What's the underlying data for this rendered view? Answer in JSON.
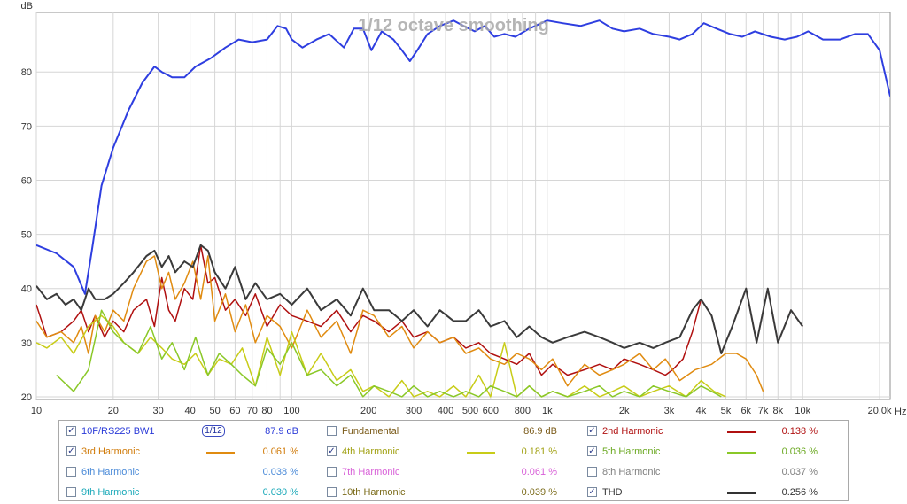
{
  "overlay_title": "1/12 octave smoothing",
  "chart_data": {
    "type": "line",
    "x_scale": "log",
    "xlim": [
      10,
      22000
    ],
    "ylim": [
      19.5,
      91
    ],
    "ylabel": "dB",
    "xlabel": "Hz",
    "grid": true,
    "y_ticks": [
      20,
      30,
      40,
      50,
      60,
      70,
      80
    ],
    "x_ticks": [
      {
        "v": 10,
        "label": "10"
      },
      {
        "v": 20,
        "label": "20"
      },
      {
        "v": 30,
        "label": "30"
      },
      {
        "v": 40,
        "label": "40"
      },
      {
        "v": 50,
        "label": "50"
      },
      {
        "v": 60,
        "label": "60"
      },
      {
        "v": 70,
        "label": "70"
      },
      {
        "v": 80,
        "label": "80"
      },
      {
        "v": 100,
        "label": "100"
      },
      {
        "v": 200,
        "label": "200"
      },
      {
        "v": 300,
        "label": "300"
      },
      {
        "v": 400,
        "label": "400"
      },
      {
        "v": 500,
        "label": "500"
      },
      {
        "v": 600,
        "label": "600"
      },
      {
        "v": 800,
        "label": "800"
      },
      {
        "v": 1000,
        "label": "1k"
      },
      {
        "v": 2000,
        "label": "2k"
      },
      {
        "v": 3000,
        "label": "3k"
      },
      {
        "v": 4000,
        "label": "4k"
      },
      {
        "v": 5000,
        "label": "5k"
      },
      {
        "v": 6000,
        "label": "6k"
      },
      {
        "v": 7000,
        "label": "7k"
      },
      {
        "v": 8000,
        "label": "8k"
      },
      {
        "v": 10000,
        "label": "10k"
      },
      {
        "v": 20000,
        "label": "20.0k"
      }
    ],
    "series": [
      {
        "name": "10F/RS225 BW1",
        "color": "#2e3ee0",
        "width": 2,
        "x": [
          10,
          12,
          14,
          15.5,
          16.5,
          18,
          20,
          23,
          26,
          29,
          31,
          34,
          38,
          42,
          48,
          55,
          62,
          70,
          80,
          88,
          95,
          100,
          110,
          125,
          140,
          160,
          175,
          190,
          205,
          225,
          250,
          270,
          290,
          310,
          340,
          380,
          430,
          470,
          520,
          570,
          620,
          680,
          750,
          850,
          1000,
          1150,
          1350,
          1600,
          1800,
          2000,
          2300,
          2600,
          3000,
          3300,
          3700,
          4100,
          4600,
          5200,
          5800,
          6500,
          7500,
          8500,
          9500,
          10500,
          12000,
          14000,
          16000,
          18000,
          20000,
          22000
        ],
        "y": [
          48,
          46.5,
          44,
          39,
          47,
          59,
          66,
          73,
          78,
          81,
          80,
          79,
          79,
          81,
          82.5,
          84.5,
          86,
          85.5,
          86,
          88.5,
          88,
          86,
          84.5,
          86,
          87,
          84.5,
          88,
          88,
          84,
          87.5,
          86,
          84,
          82,
          84,
          87,
          88.5,
          89.5,
          88.5,
          87.5,
          88.5,
          86.5,
          87,
          86.5,
          88,
          89.5,
          89,
          88.5,
          89.5,
          88,
          87.5,
          88,
          87,
          86.5,
          86,
          87,
          89,
          88,
          87,
          86.5,
          87.5,
          86.5,
          86,
          86.5,
          87.5,
          86,
          86,
          87,
          87,
          84,
          75.5
        ]
      },
      {
        "name": "2nd Harmonic",
        "color": "#b01010",
        "width": 1.5,
        "x": [
          10,
          11,
          12.5,
          14,
          15,
          16,
          17,
          18.5,
          20,
          22,
          24,
          27,
          29,
          31,
          33,
          35,
          38,
          41,
          44,
          47,
          50,
          55,
          60,
          66,
          72,
          80,
          90,
          100,
          115,
          130,
          150,
          170,
          190,
          210,
          240,
          270,
          300,
          340,
          380,
          430,
          480,
          540,
          600,
          680,
          760,
          850,
          950,
          1050,
          1200,
          1400,
          1600,
          1800,
          2000,
          2300,
          2600,
          2900,
          3100,
          3400,
          3700,
          4000,
          4400,
          4800,
          5300,
          6000,
          6600,
          7300,
          8000,
          9000,
          10000
        ],
        "y": [
          37,
          31,
          32,
          34,
          36,
          32,
          35,
          31,
          34,
          32,
          36,
          38,
          33,
          42,
          36,
          34,
          40,
          38,
          48,
          41,
          42,
          36,
          38,
          35,
          39,
          33,
          37,
          35,
          34,
          33,
          36,
          32,
          35,
          34,
          32,
          34,
          31,
          32,
          30,
          31,
          29,
          30,
          28,
          27,
          26,
          28,
          24,
          26,
          24,
          25,
          26,
          25,
          27,
          26,
          25,
          24,
          25,
          27,
          32,
          38,
          35,
          28,
          33,
          40,
          30,
          40,
          30,
          36,
          33
        ]
      },
      {
        "name": "3rd Harmonic",
        "color": "#e08b10",
        "width": 1.5,
        "x": [
          10,
          11,
          12.5,
          14,
          15,
          16,
          17,
          18.5,
          20,
          22,
          24,
          27,
          29,
          31,
          33,
          35,
          38,
          41,
          44,
          47,
          50,
          55,
          60,
          66,
          72,
          80,
          90,
          100,
          115,
          130,
          150,
          170,
          190,
          210,
          240,
          270,
          300,
          340,
          380,
          430,
          480,
          540,
          600,
          680,
          760,
          850,
          950,
          1050,
          1200,
          1400,
          1600,
          1800,
          2000,
          2300,
          2600,
          2900,
          3300,
          3800,
          4400,
          5000,
          5500,
          6000,
          6600,
          7000
        ],
        "y": [
          34,
          31,
          32,
          30,
          33,
          28,
          35,
          32,
          36,
          34,
          40,
          45,
          46,
          40,
          43,
          38,
          41,
          45,
          38,
          46,
          34,
          39,
          32,
          37,
          30,
          35,
          33,
          29,
          36,
          31,
          34,
          28,
          36,
          35,
          31,
          33,
          29,
          32,
          30,
          31,
          28,
          29,
          27,
          26,
          28,
          27,
          25,
          27,
          22,
          26,
          24,
          25,
          26,
          28,
          25,
          27,
          23,
          25,
          26,
          28,
          28,
          27,
          24,
          21
        ]
      },
      {
        "name": "4th Harmonic",
        "color": "#c8cc18",
        "width": 1.5,
        "x": [
          10,
          11,
          12.5,
          14,
          16,
          18,
          20,
          22,
          25,
          28,
          31,
          34,
          38,
          42,
          47,
          52,
          58,
          64,
          72,
          80,
          90,
          100,
          115,
          130,
          150,
          170,
          190,
          210,
          240,
          270,
          300,
          340,
          380,
          430,
          480,
          540,
          600,
          680,
          760,
          850,
          950,
          1050,
          1200,
          1400,
          1600,
          1800,
          2000,
          2300,
          2600,
          3000,
          3500,
          4000,
          4500,
          5000
        ],
        "y": [
          30,
          29,
          31,
          28,
          33,
          35,
          33,
          30,
          28,
          31,
          29,
          27,
          26,
          28,
          24,
          27,
          26,
          29,
          22,
          31,
          24,
          32,
          24,
          28,
          23,
          25,
          21,
          22,
          20,
          23,
          20,
          21,
          20,
          22,
          20,
          24,
          20,
          30,
          20,
          22,
          20,
          21,
          20,
          22,
          20,
          21,
          22,
          20,
          21,
          22,
          20,
          23,
          21,
          20
        ]
      },
      {
        "name": "5th Harmonic",
        "color": "#8ac828",
        "width": 1.5,
        "x": [
          12,
          14,
          16,
          18,
          20,
          22,
          25,
          28,
          31,
          34,
          38,
          42,
          47,
          52,
          58,
          64,
          72,
          80,
          90,
          100,
          115,
          130,
          150,
          170,
          190,
          210,
          240,
          270,
          300,
          340,
          380,
          430,
          480,
          540,
          600,
          680,
          760,
          850,
          950,
          1050,
          1200,
          1400,
          1600,
          1800,
          2000,
          2300,
          2600,
          3000,
          3500,
          4000,
          4400,
          4800
        ],
        "y": [
          24,
          21,
          25,
          36,
          32,
          30,
          28,
          33,
          27,
          30,
          25,
          31,
          24,
          28,
          26,
          24,
          22,
          29,
          26,
          30,
          24,
          25,
          22,
          24,
          20,
          22,
          21,
          20,
          22,
          20,
          21,
          20,
          21,
          20,
          22,
          21,
          20,
          22,
          20,
          21,
          20,
          21,
          22,
          20,
          21,
          20,
          22,
          21,
          20,
          22,
          21,
          20
        ]
      },
      {
        "name": "THD",
        "color": "#3a3a3a",
        "width": 2,
        "x": [
          10,
          11,
          12,
          13,
          14,
          15,
          16,
          17,
          18.5,
          20,
          22,
          24,
          27,
          29,
          31,
          33,
          35,
          38,
          41,
          44,
          47,
          50,
          55,
          60,
          66,
          72,
          80,
          90,
          100,
          115,
          130,
          150,
          170,
          190,
          210,
          240,
          270,
          300,
          340,
          380,
          430,
          480,
          540,
          600,
          680,
          760,
          850,
          950,
          1050,
          1200,
          1400,
          1600,
          1800,
          2000,
          2300,
          2600,
          2900,
          3300,
          3700,
          4000,
          4400,
          4800,
          5300,
          6000,
          6600,
          7300,
          8000,
          9000,
          10000
        ],
        "y": [
          40.5,
          38,
          39,
          37,
          38,
          36,
          40,
          38,
          38,
          39,
          41,
          43,
          46,
          47,
          44,
          46,
          43,
          45,
          44,
          48,
          47,
          43,
          40,
          44,
          38,
          41,
          38,
          39,
          37,
          40,
          36,
          38,
          35,
          40,
          36,
          36,
          34,
          36,
          33,
          36,
          34,
          34,
          36,
          33,
          34,
          31,
          33,
          31,
          30,
          31,
          32,
          31,
          30,
          29,
          30,
          29,
          30,
          31,
          36,
          38,
          35,
          28,
          33,
          40,
          30,
          40,
          30,
          36,
          33
        ]
      }
    ]
  },
  "legend": [
    {
      "checked": true,
      "label": "10F/RS225 BW1",
      "label_color": "#2a3ad8",
      "line_color": null,
      "smoothing_label": "1/12",
      "value": "87.9 dB",
      "value_color": "#2a3ad8"
    },
    {
      "checked": false,
      "label": "Fundamental",
      "label_color": "#7a5a18",
      "line_color": null,
      "value": "86.9 dB",
      "value_color": "#7a5a18"
    },
    {
      "checked": true,
      "label": "2nd Harmonic",
      "label_color": "#b01010",
      "line_color": "#b01010",
      "value": "0.138 %",
      "value_color": "#b01010"
    },
    {
      "checked": true,
      "label": "3rd Harmonic",
      "label_color": "#d07a08",
      "line_color": "#e08b10",
      "value": "0.061 %",
      "value_color": "#d07a08"
    },
    {
      "checked": true,
      "label": "4th Harmonic",
      "label_color": "#a0a010",
      "line_color": "#c8cc18",
      "value": "0.181 %",
      "value_color": "#a0a010"
    },
    {
      "checked": true,
      "label": "5th Harmonic",
      "label_color": "#6aa820",
      "line_color": "#8ac828",
      "value": "0.036 %",
      "value_color": "#6aa820"
    },
    {
      "checked": false,
      "label": "6th Harmonic",
      "label_color": "#4a8ad8",
      "line_color": null,
      "value": "0.038 %",
      "value_color": "#4a8ad8"
    },
    {
      "checked": false,
      "label": "7th Harmonic",
      "label_color": "#d860d8",
      "line_color": null,
      "value": "0.061 %",
      "value_color": "#d860d8"
    },
    {
      "checked": false,
      "label": "8th Harmonic",
      "label_color": "#808080",
      "line_color": null,
      "value": "0.037 %",
      "value_color": "#808080"
    },
    {
      "checked": false,
      "label": "9th Harmonic",
      "label_color": "#18a8b8",
      "line_color": null,
      "value": "0.030 %",
      "value_color": "#18a8b8"
    },
    {
      "checked": false,
      "label": "10th Harmonic",
      "label_color": "#7a6a18",
      "line_color": null,
      "value": "0.039 %",
      "value_color": "#7a6a18"
    },
    {
      "checked": true,
      "label": "THD",
      "label_color": "#333333",
      "line_color": "#333333",
      "value": "0.256 %",
      "value_color": "#333333"
    }
  ]
}
